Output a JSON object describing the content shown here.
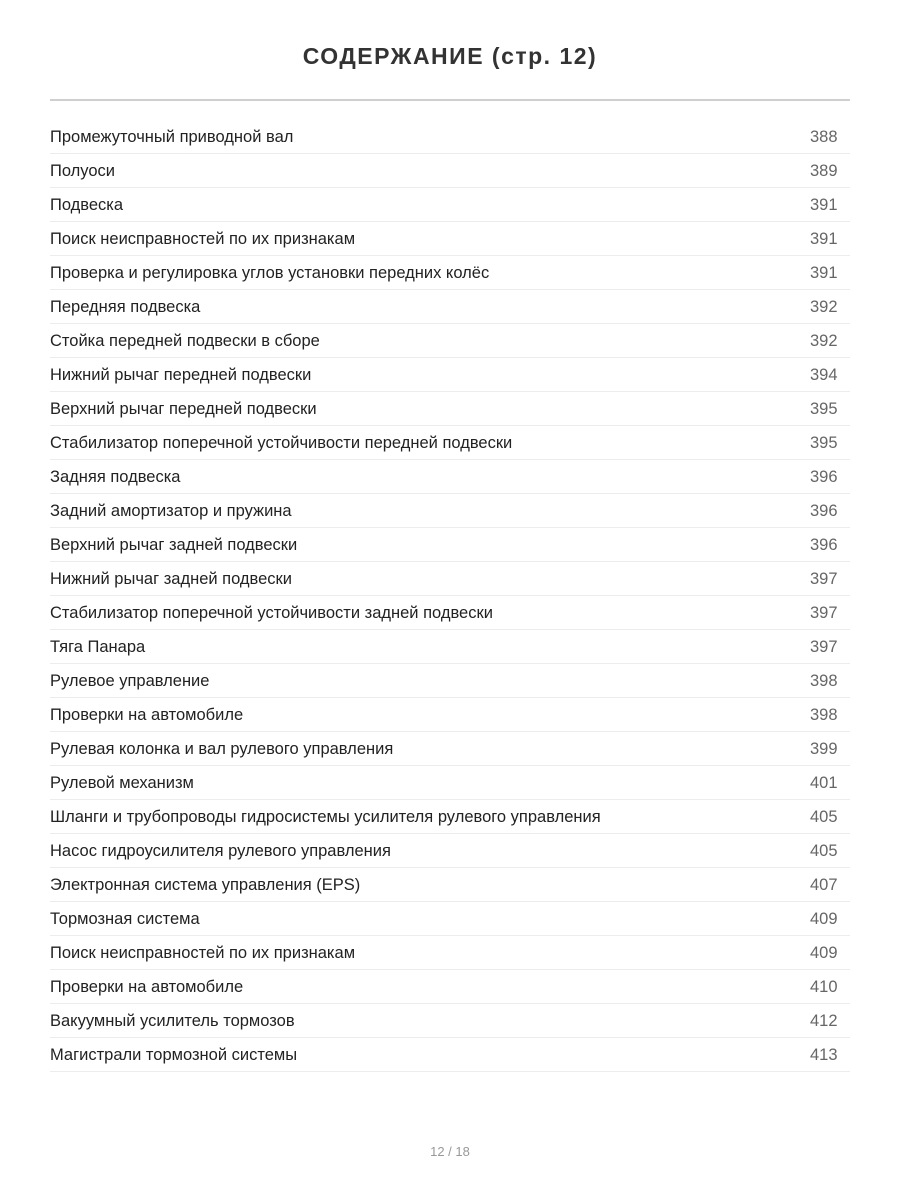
{
  "title": "СОДЕРЖАНИЕ (стр. 12)",
  "entries": [
    {
      "title": "Промежуточный приводной вал",
      "page": "388"
    },
    {
      "title": "Полуоси",
      "page": "389"
    },
    {
      "title": "Подвеска",
      "page": "391"
    },
    {
      "title": "Поиск неисправностей по их признакам",
      "page": "391"
    },
    {
      "title": "Проверка и регулировка углов установки передних колёс",
      "page": "391"
    },
    {
      "title": "Передняя подвеска",
      "page": "392"
    },
    {
      "title": "Стойка передней подвески в сборе",
      "page": "392"
    },
    {
      "title": "Нижний рычаг передней подвески",
      "page": "394"
    },
    {
      "title": "Верхний рычаг передней подвески",
      "page": "395"
    },
    {
      "title": "Стабилизатор поперечной устойчивости передней подвески",
      "page": "395"
    },
    {
      "title": "Задняя подвеска",
      "page": "396"
    },
    {
      "title": "Задний амортизатор и пружина",
      "page": "396"
    },
    {
      "title": "Верхний рычаг задней подвески",
      "page": "396"
    },
    {
      "title": "Нижний рычаг задней подвески",
      "page": "397"
    },
    {
      "title": "Стабилизатор поперечной устойчивости задней подвески",
      "page": "397"
    },
    {
      "title": "Тяга Панара",
      "page": "397"
    },
    {
      "title": "Рулевое управление",
      "page": "398"
    },
    {
      "title": "Проверки на автомобиле",
      "page": "398"
    },
    {
      "title": "Рулевая колонка и вал рулевого управления",
      "page": "399"
    },
    {
      "title": "Рулевой механизм",
      "page": "401"
    },
    {
      "title": "Шланги и трубопроводы гидросистемы усилителя рулевого управления",
      "page": "405"
    },
    {
      "title": "Насос гидроусилителя рулевого управления",
      "page": "405"
    },
    {
      "title": "Электронная система управления (EPS)",
      "page": "407"
    },
    {
      "title": "Тормозная система",
      "page": "409"
    },
    {
      "title": "Поиск неисправностей по их признакам",
      "page": "409"
    },
    {
      "title": "Проверки на автомобиле",
      "page": "410"
    },
    {
      "title": "Вакуумный усилитель тормозов",
      "page": "412"
    },
    {
      "title": "Магистрали тормозной системы",
      "page": "413"
    }
  ],
  "footer": {
    "page_indicator": "12 / 18"
  }
}
